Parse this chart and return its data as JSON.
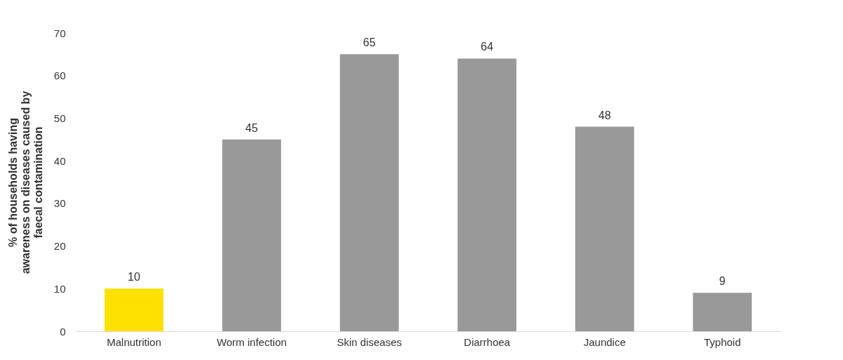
{
  "chart_data": {
    "type": "bar",
    "ylabel": "% of households having awareness on diseases caused by faecal  contamination",
    "categories": [
      "Malnutrition",
      "Worm infection",
      "Skin diseases",
      "Diarrhoea",
      "Jaundice",
      "Typhoid"
    ],
    "values": [
      10,
      45,
      65,
      64,
      48,
      9
    ],
    "colors": [
      "#ffe100",
      "#999999",
      "#999999",
      "#999999",
      "#999999",
      "#999999"
    ],
    "ylim": [
      0,
      70
    ],
    "yticks": [
      0,
      10,
      20,
      30,
      40,
      50,
      60,
      70
    ],
    "grid": false,
    "data_labels": true
  }
}
